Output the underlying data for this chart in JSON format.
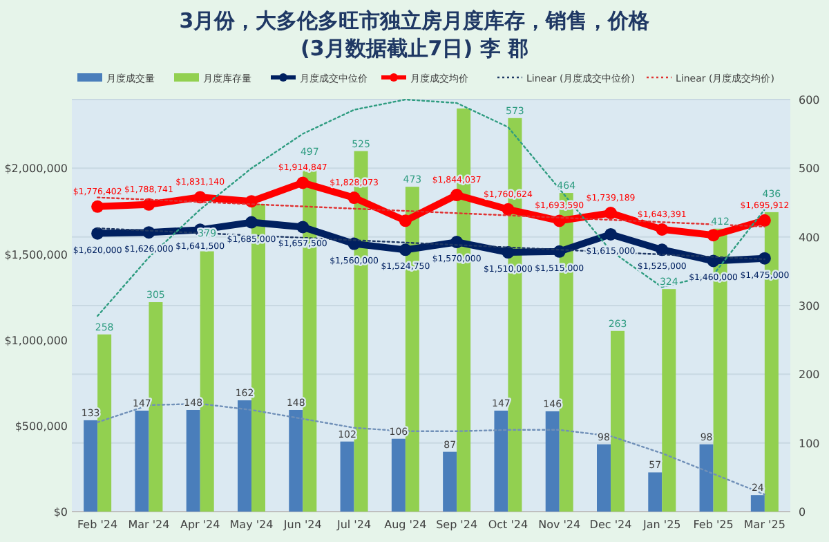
{
  "chart_data": {
    "type": "bar",
    "title": "3月份，大多伦多旺市独立房月度库存，销售，价格",
    "subtitle": "(3月数据截止7日) 李 郡",
    "categories": [
      "Feb '24",
      "Mar '24",
      "Apr '24",
      "May '24",
      "Jun '24",
      "Jul '24",
      "Aug '24",
      "Sep '24",
      "Oct '24",
      "Nov '24",
      "Dec '24",
      "Jan '25",
      "Feb '25",
      "Mar '25"
    ],
    "ylim": [
      0,
      2400000
    ],
    "yticks": [
      {
        "value": 0,
        "label": "$0"
      },
      {
        "value": 500000,
        "label": "$500,000"
      },
      {
        "value": 1000000,
        "label": "$1,000,000"
      },
      {
        "value": 1500000,
        "label": "$1,500,000"
      },
      {
        "value": 2000000,
        "label": "$2,000,000"
      }
    ],
    "y2lim": [
      0,
      600
    ],
    "y2ticks": [
      0,
      100,
      200,
      300,
      400,
      500,
      600
    ],
    "grid": "y",
    "legend": "top",
    "series": [
      {
        "name": "月度成交量",
        "axis": "y2",
        "color": "#4a7ebb",
        "values": [
          133,
          147,
          148,
          162,
          148,
          102,
          106,
          87,
          147,
          146,
          98,
          57,
          98,
          24
        ],
        "value_labels": [
          "133",
          "147",
          "148",
          "162",
          "148",
          "102",
          "106",
          "87",
          "147",
          "146",
          "98",
          "57",
          "98",
          "24"
        ]
      },
      {
        "name": "月度库存量",
        "axis": "y2",
        "color": "#92d050",
        "values": [
          258,
          305,
          379,
          448,
          497,
          525,
          473,
          587,
          573,
          464,
          263,
          324,
          412,
          436
        ],
        "value_labels": [
          "258",
          "305",
          "379",
          null,
          "497",
          "525",
          "473",
          null,
          "573",
          "464",
          "263",
          "324",
          "412",
          "436"
        ]
      },
      {
        "name": "月度成交中位价",
        "type": "line",
        "axis": "y",
        "color": "#002060",
        "marker": "circle",
        "line_style": "solid",
        "values": [
          1620000,
          1626000,
          1641500,
          1685000,
          1657500,
          1560000,
          1524750,
          1570000,
          1510000,
          1515000,
          1615000,
          1525000,
          1460000,
          1475000
        ],
        "value_labels": [
          "$1,620,000",
          "$1,626,000",
          "$1,641,500",
          "$1,685,000",
          "$1,657,500",
          "$1,560,000",
          "$1,524,750",
          "$1,570,000",
          "$1,510,000",
          "$1,515,000",
          "$1,615,000",
          "$1,525,000",
          "$1,460,000",
          "$1,475,000"
        ]
      },
      {
        "name": "月度成交均价",
        "type": "line",
        "axis": "y",
        "color": "#ff0000",
        "marker": "circle",
        "line_style": "solid",
        "values": [
          1776402,
          1788741,
          1831140,
          1807500,
          1914847,
          1828073,
          1694200,
          1844037,
          1760624,
          1693590,
          1739189,
          1643391,
          1610000,
          1695912
        ],
        "value_labels": [
          "$1,776,402",
          "$1,788,741",
          "$1,831,140",
          null,
          "$1,914,847",
          "$1,828,073",
          null,
          "$1,844,037",
          "$1,760,624",
          "$1,693,590",
          "$1,739,189",
          "$1,643,391",
          null,
          "$1,695,912"
        ]
      },
      {
        "name": "Linear (月度成交中位价)",
        "type": "line",
        "axis": "y",
        "color": "#1f3864",
        "marker": "none",
        "line_style": "dotted",
        "values": [
          1650000,
          null,
          null,
          null,
          null,
          null,
          null,
          null,
          null,
          null,
          null,
          null,
          null,
          1470000
        ]
      },
      {
        "name": "Linear (月度成交均价)",
        "type": "line",
        "axis": "y",
        "color": "#e03030",
        "marker": "none",
        "line_style": "dotted",
        "values": [
          1830000,
          null,
          null,
          null,
          null,
          null,
          null,
          null,
          null,
          null,
          null,
          null,
          null,
          1660000
        ]
      },
      {
        "type": "line",
        "axis": "y2",
        "color": "#2e9c80",
        "marker": "none",
        "line_style": "dotted",
        "values": [
          285,
          370,
          440,
          500,
          550,
          585,
          600,
          595,
          560,
          470,
          380,
          327,
          345,
          440
        ]
      },
      {
        "type": "line",
        "axis": "y2",
        "color": "#7090b8",
        "marker": "none",
        "line_style": "dotted",
        "values": [
          130,
          155,
          157,
          148,
          135,
          122,
          117,
          117,
          119,
          119,
          110,
          85,
          55,
          25
        ]
      }
    ]
  }
}
